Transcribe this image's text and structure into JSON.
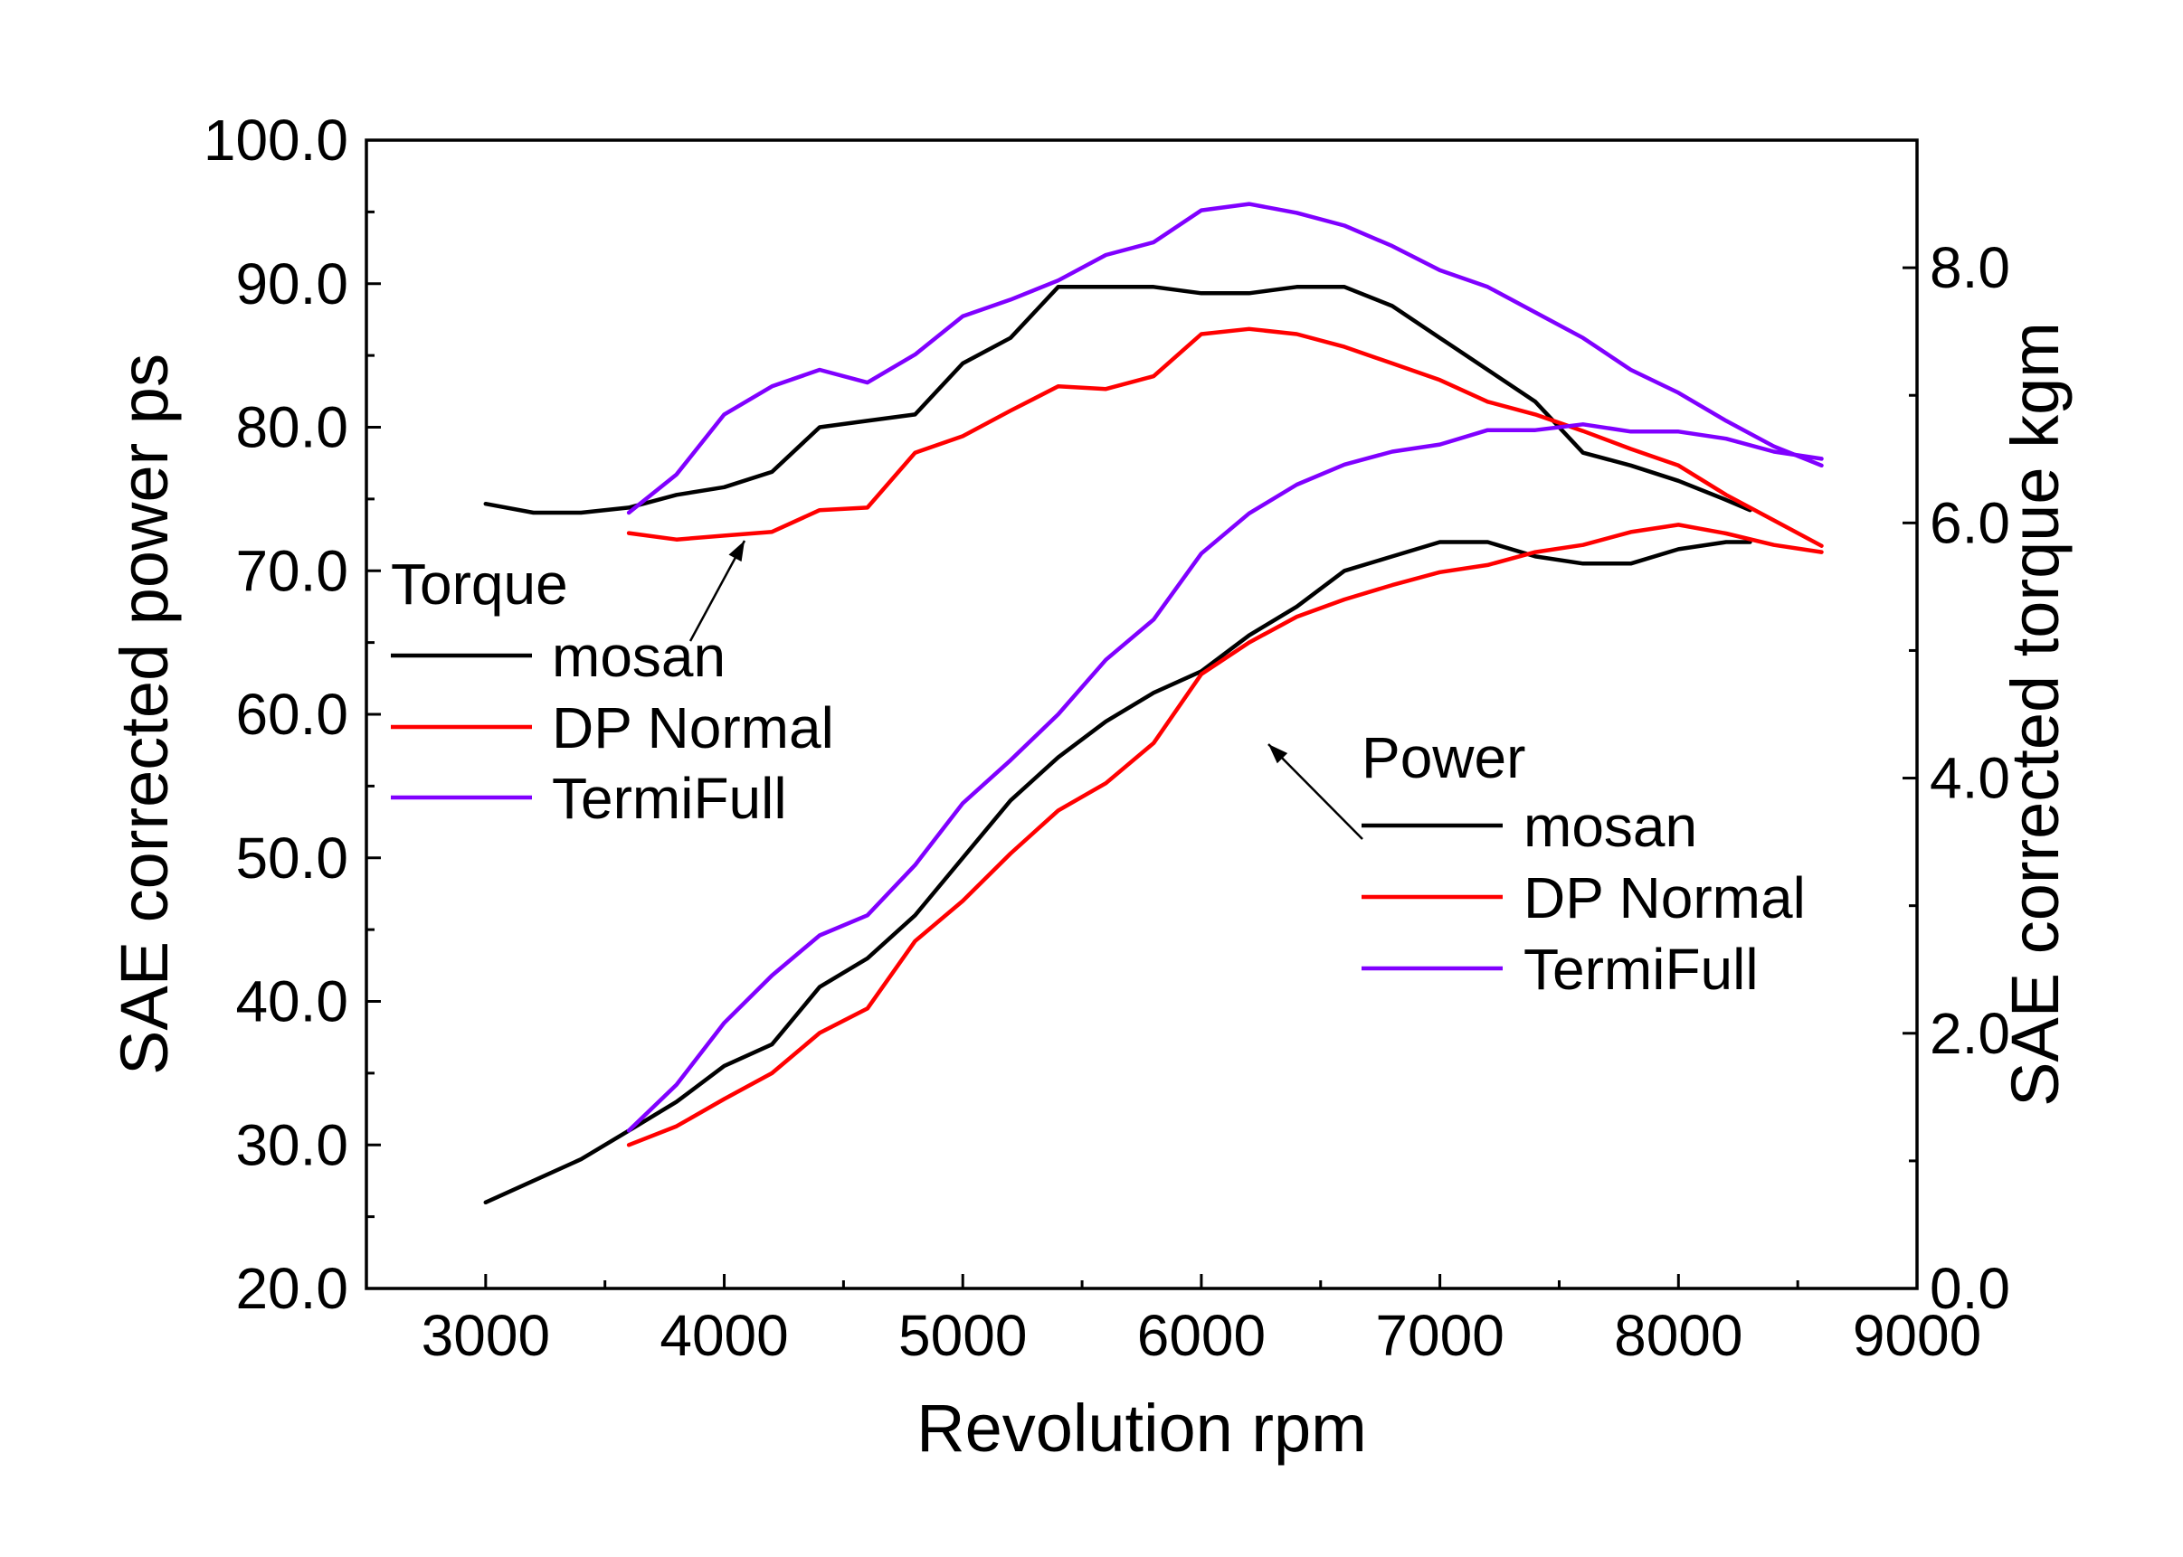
{
  "chart_data": {
    "type": "line",
    "x_axis": {
      "title": "Revolution rpm",
      "range": [
        2500,
        9000
      ],
      "ticks": [
        3000,
        4000,
        5000,
        6000,
        7000,
        8000,
        9000
      ],
      "tick_labels": [
        "3000",
        "4000",
        "5000",
        "6000",
        "7000",
        "8000",
        "9000"
      ]
    },
    "y_axis_left": {
      "title": "SAE corrected power ps",
      "range": [
        20,
        100
      ],
      "ticks": [
        20,
        30,
        40,
        50,
        60,
        70,
        80,
        90,
        100
      ],
      "tick_labels": [
        "20.0",
        "30.0",
        "40.0",
        "50.0",
        "60.0",
        "70.0",
        "80.0",
        "90.0",
        "100.0"
      ]
    },
    "y_axis_right": {
      "title": "SAE corrected torque kgm",
      "range": [
        0,
        9
      ],
      "ticks": [
        0,
        2,
        4,
        6,
        8
      ],
      "tick_labels": [
        "0.0",
        "2.0",
        "4.0",
        "6.0",
        "8.0"
      ]
    },
    "grid": false,
    "colors": {
      "mosan": "#000000",
      "dp_normal": "#ff0000",
      "termifull": "#8000ff"
    },
    "legends": [
      {
        "group": "torque",
        "title": "Torque",
        "position": "left-middle",
        "entries": [
          {
            "label": "mosan",
            "color": "#000000"
          },
          {
            "label": "DP Normal",
            "color": "#ff0000"
          },
          {
            "label": "TermiFull",
            "color": "#8000ff"
          }
        ]
      },
      {
        "group": "power",
        "title": "Power",
        "position": "right-middle",
        "entries": [
          {
            "label": "mosan",
            "color": "#000000"
          },
          {
            "label": "DP Normal",
            "color": "#ff0000"
          },
          {
            "label": "TermiFull",
            "color": "#8000ff"
          }
        ]
      }
    ],
    "series": [
      {
        "name": "mosan",
        "group": "torque",
        "axis": "right",
        "color": "#000000",
        "points": [
          [
            3000,
            6.15
          ],
          [
            3200,
            6.08
          ],
          [
            3400,
            6.08
          ],
          [
            3600,
            6.12
          ],
          [
            3800,
            6.22
          ],
          [
            4000,
            6.28
          ],
          [
            4200,
            6.4
          ],
          [
            4400,
            6.75
          ],
          [
            4600,
            6.8
          ],
          [
            4800,
            6.85
          ],
          [
            5000,
            7.25
          ],
          [
            5200,
            7.45
          ],
          [
            5400,
            7.85
          ],
          [
            5600,
            7.85
          ],
          [
            5800,
            7.85
          ],
          [
            6000,
            7.8
          ],
          [
            6200,
            7.8
          ],
          [
            6400,
            7.85
          ],
          [
            6600,
            7.85
          ],
          [
            6800,
            7.7
          ],
          [
            7000,
            7.45
          ],
          [
            7200,
            7.2
          ],
          [
            7400,
            6.95
          ],
          [
            7600,
            6.55
          ],
          [
            7800,
            6.45
          ],
          [
            8000,
            6.33
          ],
          [
            8200,
            6.18
          ],
          [
            8300,
            6.1
          ]
        ]
      },
      {
        "name": "DP Normal",
        "group": "torque",
        "axis": "right",
        "color": "#ff0000",
        "points": [
          [
            3600,
            5.92
          ],
          [
            3800,
            5.87
          ],
          [
            4000,
            5.9
          ],
          [
            4200,
            5.93
          ],
          [
            4400,
            6.1
          ],
          [
            4600,
            6.12
          ],
          [
            4800,
            6.55
          ],
          [
            5000,
            6.68
          ],
          [
            5200,
            6.88
          ],
          [
            5400,
            7.07
          ],
          [
            5600,
            7.05
          ],
          [
            5800,
            7.15
          ],
          [
            6000,
            7.48
          ],
          [
            6200,
            7.52
          ],
          [
            6400,
            7.48
          ],
          [
            6600,
            7.38
          ],
          [
            6800,
            7.25
          ],
          [
            7000,
            7.12
          ],
          [
            7200,
            6.95
          ],
          [
            7400,
            6.85
          ],
          [
            7600,
            6.72
          ],
          [
            7800,
            6.58
          ],
          [
            8000,
            6.45
          ],
          [
            8200,
            6.22
          ],
          [
            8400,
            6.02
          ],
          [
            8600,
            5.82
          ]
        ]
      },
      {
        "name": "TermiFull",
        "group": "torque",
        "axis": "right",
        "color": "#8000ff",
        "points": [
          [
            3600,
            6.08
          ],
          [
            3800,
            6.38
          ],
          [
            4000,
            6.85
          ],
          [
            4200,
            7.07
          ],
          [
            4400,
            7.2
          ],
          [
            4600,
            7.1
          ],
          [
            4800,
            7.32
          ],
          [
            5000,
            7.62
          ],
          [
            5200,
            7.75
          ],
          [
            5400,
            7.9
          ],
          [
            5600,
            8.1
          ],
          [
            5800,
            8.2
          ],
          [
            6000,
            8.45
          ],
          [
            6200,
            8.5
          ],
          [
            6400,
            8.43
          ],
          [
            6600,
            8.33
          ],
          [
            6800,
            8.17
          ],
          [
            7000,
            7.98
          ],
          [
            7200,
            7.85
          ],
          [
            7400,
            7.65
          ],
          [
            7600,
            7.45
          ],
          [
            7800,
            7.2
          ],
          [
            8000,
            7.02
          ],
          [
            8200,
            6.8
          ],
          [
            8400,
            6.6
          ],
          [
            8600,
            6.45
          ]
        ]
      },
      {
        "name": "mosan",
        "group": "power",
        "axis": "left",
        "color": "#000000",
        "points": [
          [
            3000,
            26
          ],
          [
            3200,
            27.5
          ],
          [
            3400,
            29
          ],
          [
            3600,
            31
          ],
          [
            3800,
            33
          ],
          [
            4000,
            35.5
          ],
          [
            4200,
            37
          ],
          [
            4400,
            41
          ],
          [
            4600,
            43
          ],
          [
            4800,
            46
          ],
          [
            5000,
            50
          ],
          [
            5200,
            54
          ],
          [
            5400,
            57
          ],
          [
            5600,
            59.5
          ],
          [
            5800,
            61.5
          ],
          [
            6000,
            63
          ],
          [
            6200,
            65.5
          ],
          [
            6400,
            67.5
          ],
          [
            6600,
            70
          ],
          [
            6800,
            71
          ],
          [
            7000,
            72
          ],
          [
            7200,
            72
          ],
          [
            7400,
            71
          ],
          [
            7600,
            70.5
          ],
          [
            7800,
            70.5
          ],
          [
            8000,
            71.5
          ],
          [
            8200,
            72
          ],
          [
            8300,
            72
          ]
        ]
      },
      {
        "name": "DP Normal",
        "group": "power",
        "axis": "left",
        "color": "#ff0000",
        "points": [
          [
            3600,
            30
          ],
          [
            3800,
            31.3
          ],
          [
            4000,
            33.2
          ],
          [
            4200,
            35
          ],
          [
            4400,
            37.8
          ],
          [
            4600,
            39.5
          ],
          [
            4800,
            44.2
          ],
          [
            5000,
            47
          ],
          [
            5200,
            50.3
          ],
          [
            5400,
            53.3
          ],
          [
            5600,
            55.2
          ],
          [
            5800,
            58
          ],
          [
            6000,
            62.8
          ],
          [
            6200,
            65
          ],
          [
            6400,
            66.8
          ],
          [
            6600,
            68
          ],
          [
            6800,
            69
          ],
          [
            7000,
            69.9
          ],
          [
            7200,
            70.4
          ],
          [
            7400,
            71.3
          ],
          [
            7600,
            71.8
          ],
          [
            7800,
            72.7
          ],
          [
            8000,
            73.2
          ],
          [
            8200,
            72.6
          ],
          [
            8400,
            71.8
          ],
          [
            8600,
            71.3
          ]
        ]
      },
      {
        "name": "TermiFull",
        "group": "power",
        "axis": "left",
        "color": "#8000ff",
        "points": [
          [
            3600,
            31
          ],
          [
            3800,
            34.2
          ],
          [
            4000,
            38.5
          ],
          [
            4200,
            41.8
          ],
          [
            4400,
            44.6
          ],
          [
            4600,
            46
          ],
          [
            4800,
            49.5
          ],
          [
            5000,
            53.8
          ],
          [
            5200,
            56.8
          ],
          [
            5400,
            60
          ],
          [
            5600,
            63.8
          ],
          [
            5800,
            66.6
          ],
          [
            6000,
            71.2
          ],
          [
            6200,
            74
          ],
          [
            6400,
            76
          ],
          [
            6600,
            77.4
          ],
          [
            6800,
            78.3
          ],
          [
            7000,
            78.8
          ],
          [
            7200,
            79.8
          ],
          [
            7400,
            79.8
          ],
          [
            7600,
            80.2
          ],
          [
            7800,
            79.7
          ],
          [
            8000,
            79.7
          ],
          [
            8200,
            79.2
          ],
          [
            8400,
            78.3
          ],
          [
            8600,
            77.8
          ]
        ]
      }
    ]
  }
}
